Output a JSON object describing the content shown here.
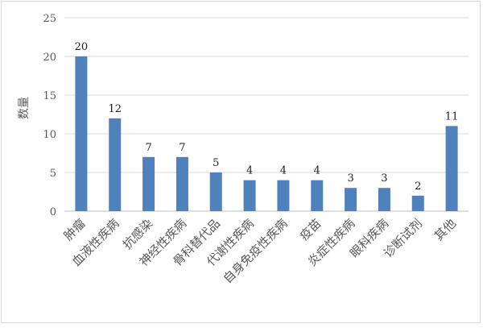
{
  "chart_data": {
    "type": "bar",
    "title": "",
    "xlabel": "",
    "ylabel": "数量",
    "ylim": [
      0,
      25
    ],
    "yticks": [
      0,
      5,
      10,
      15,
      20,
      25
    ],
    "grid": true,
    "legend": "none",
    "bar_color": "#4f81bd",
    "categories": [
      "肿瘤",
      "血液性疾病",
      "抗感染",
      "神经性疾病",
      "骨科替代品",
      "代谢性疾病",
      "自身免疫性疾病",
      "疫苗",
      "炎症性疾病",
      "眼科疾病",
      "诊断试剂",
      "其他"
    ],
    "values": [
      20,
      12,
      7,
      7,
      5,
      4,
      4,
      4,
      3,
      3,
      2,
      11
    ]
  }
}
